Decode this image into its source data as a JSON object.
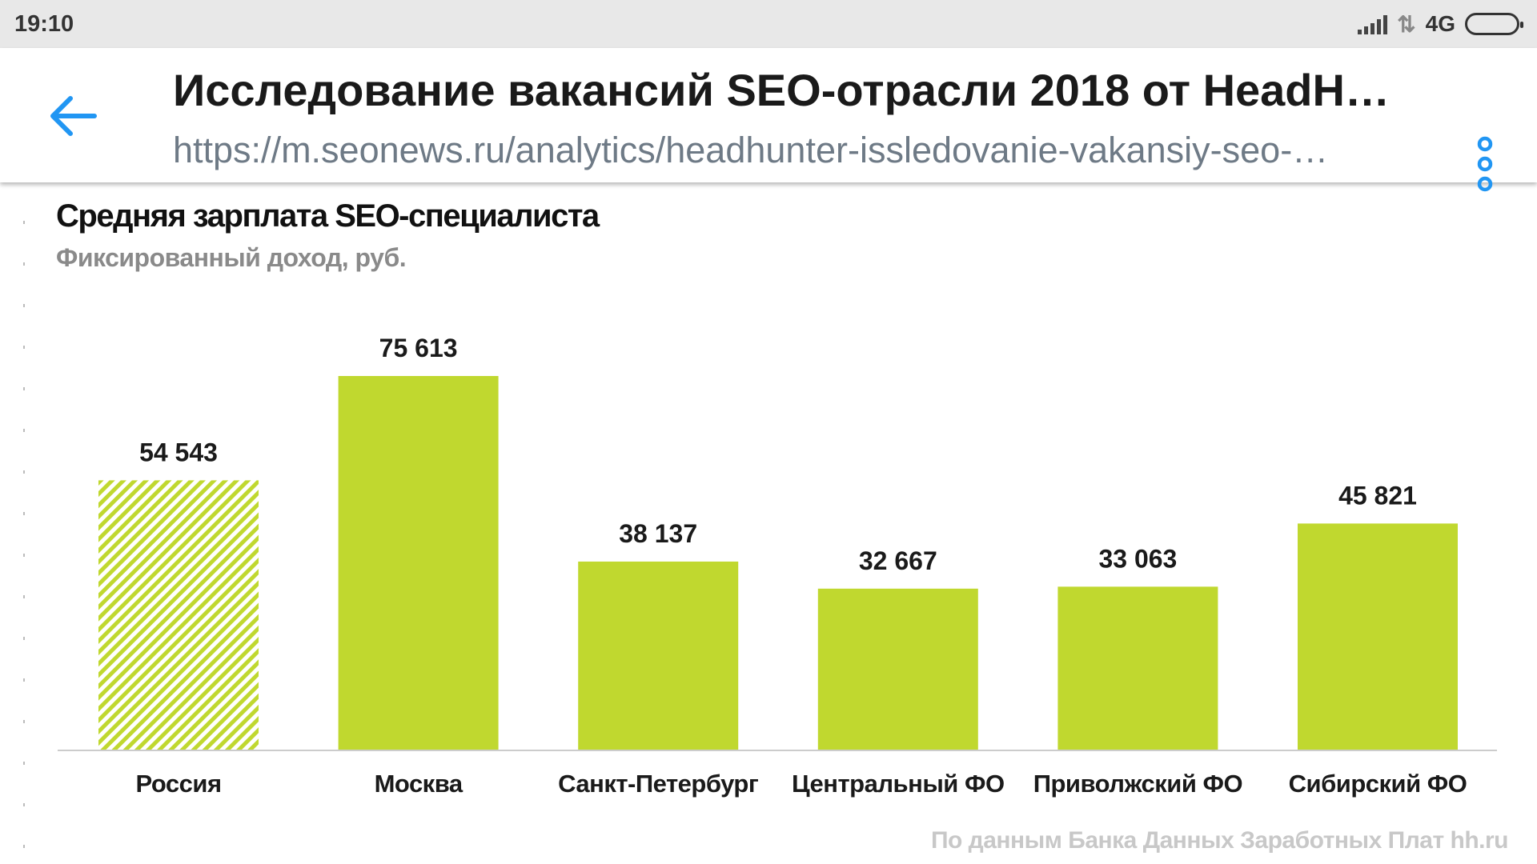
{
  "status_bar": {
    "time": "19:10",
    "network": "4G",
    "icons": [
      "signal-icon",
      "data-transfer-icon",
      "battery-icon"
    ]
  },
  "app_bar": {
    "title": "Исследование вакансий SEO-отрасли 2018 от HeadH…",
    "url": "https://m.seonews.ru/analytics/headhunter-issledovanie-vakansiy-seo-…",
    "accent_color": "#2196f3",
    "icons": [
      "back-arrow-icon",
      "more-vert-icon"
    ]
  },
  "chart": {
    "title": "Средняя зарплата SEO-специалиста",
    "subtitle": "Фиксированный доход, руб.",
    "source": "По данным Банка Данных Заработных Плат hh.ru"
  },
  "chart_data": {
    "type": "bar",
    "title": "Средняя зарплата SEO-специалиста",
    "subtitle": "Фиксированный доход, руб.",
    "categories": [
      "Россия",
      "Москва",
      "Санкт-Петербург",
      "Центральный ФО",
      "Приволжский ФО",
      "Сибирский ФО"
    ],
    "values": [
      54543,
      75613,
      38137,
      32667,
      33063,
      45821
    ],
    "value_labels": [
      "54 543",
      "75 613",
      "38 137",
      "32 667",
      "33 063",
      "45 821"
    ],
    "ylim": [
      0,
      75613
    ],
    "bar_color": "#c0d82f",
    "highlighted_category": "Россия",
    "highlight_style": "hatched",
    "grid": false,
    "legend": "none"
  }
}
